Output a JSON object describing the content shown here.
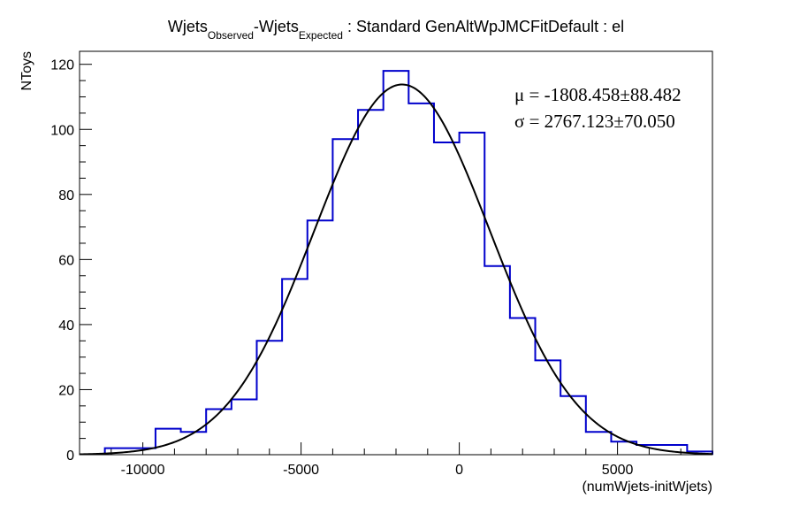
{
  "chart_data": {
    "type": "histogram",
    "title": {
      "part1": "Wjets",
      "sub1": "Observed",
      "part2": "-Wjets",
      "sub2": "Expected",
      "part3": " : Standard GenAltWpJMCFitDefault : el"
    },
    "xlabel": "(numWjets-initWjets)",
    "ylabel": "NToys",
    "xlim": [
      -12000,
      8000
    ],
    "ylim": [
      0,
      124
    ],
    "x_ticks": [
      -10000,
      -5000,
      0,
      5000
    ],
    "x_tick_labels": [
      "-10000",
      "-5000",
      "0",
      "5000"
    ],
    "y_ticks": [
      0,
      20,
      40,
      60,
      80,
      100,
      120
    ],
    "y_tick_labels": [
      "0",
      "20",
      "40",
      "60",
      "80",
      "100",
      "120"
    ],
    "bin_edges": [
      -11200,
      -10400,
      -9600,
      -8800,
      -8000,
      -7200,
      -6400,
      -5600,
      -4800,
      -4000,
      -3200,
      -2400,
      -1600,
      -800,
      0,
      800,
      1600,
      2400,
      3200,
      4000,
      4800,
      5600,
      6400,
      7200,
      8000
    ],
    "counts": [
      2,
      2,
      8,
      7,
      14,
      17,
      35,
      54,
      72,
      97,
      106,
      118,
      108,
      96,
      99,
      58,
      42,
      29,
      18,
      7,
      4,
      3,
      3,
      1
    ],
    "fit": {
      "mean": -1808.458,
      "sigma": 2767.123,
      "peak": 113.8,
      "mu_label": "μ = -1808.458±88.482",
      "sigma_label": "σ = 2767.123±70.050"
    },
    "colors": {
      "histogram": "#0000cc",
      "fit": "#000000",
      "axes": "#000000"
    }
  }
}
